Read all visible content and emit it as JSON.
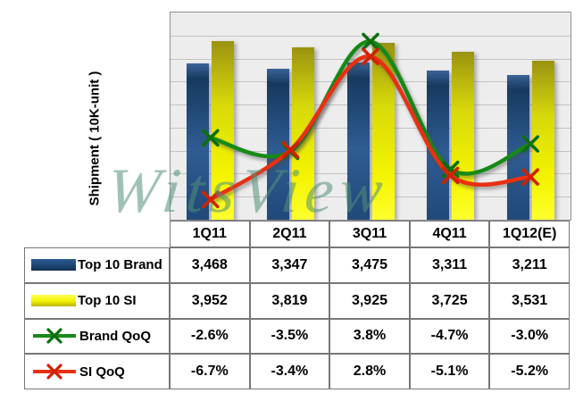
{
  "watermark": "WitsView",
  "chart_data": {
    "type": "combo",
    "title": "",
    "ylabel": "Shipment ( 10K-unit )",
    "xlabel": "",
    "categories": [
      "1Q11",
      "2Q11",
      "3Q11",
      "4Q11",
      "1Q12(E)"
    ],
    "series": [
      {
        "name": "Top 10 Brand",
        "type": "bar",
        "color": "#2a5588",
        "marker_color": "#2a5588",
        "values": [
          3468,
          3347,
          3475,
          3311,
          3211
        ],
        "display": [
          "3,468",
          "3,347",
          "3,475",
          "3,311",
          "3,211"
        ]
      },
      {
        "name": "Top 10 SI",
        "type": "bar",
        "color": "#eded00",
        "marker_color": "#eded00",
        "values": [
          3952,
          3819,
          3925,
          3725,
          3531
        ],
        "display": [
          "3,952",
          "3,819",
          "3,925",
          "3,725",
          "3,531"
        ]
      },
      {
        "name": "Brand QoQ",
        "type": "line",
        "color": "#168a16",
        "marker_color": "#0d6f0d",
        "values": [
          -2.6,
          -3.5,
          3.8,
          -4.7,
          -3.0
        ],
        "display": [
          "-2.6%",
          "-3.5%",
          "3.8%",
          "-4.7%",
          "-3.0%"
        ]
      },
      {
        "name": "SI QoQ",
        "type": "line",
        "color": "#e83012",
        "marker_color": "#cf2200",
        "values": [
          -6.7,
          -3.4,
          2.8,
          -5.1,
          -5.2
        ],
        "display": [
          "-6.7%",
          "-3.4%",
          "2.8%",
          "-5.1%",
          "-5.2%"
        ]
      }
    ],
    "bar_axis": {
      "min": 0,
      "max": 4590,
      "tick_labels_visible": false
    },
    "line_axis": {
      "visible": false
    },
    "grid": true,
    "legend_position": "table-left-column"
  }
}
